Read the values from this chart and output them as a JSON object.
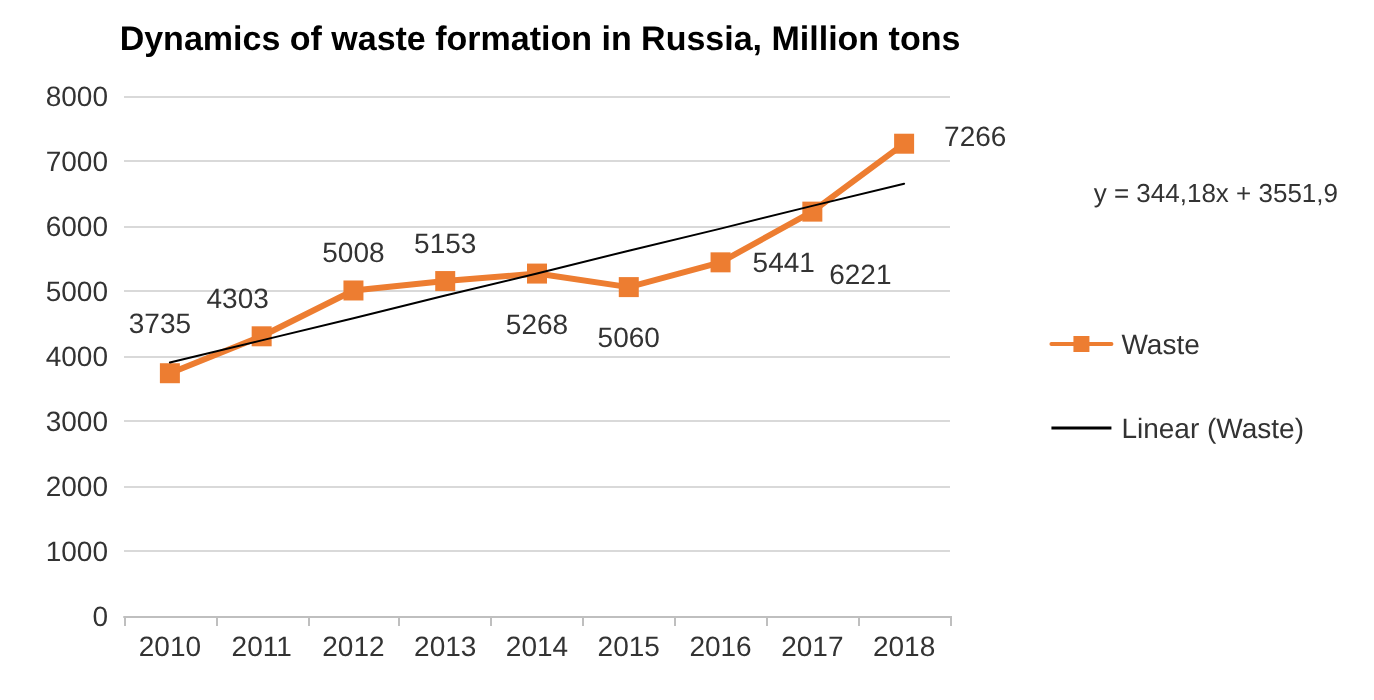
{
  "chart_data": {
    "type": "line",
    "title": "Dynamics of waste formation in Russia, Million tons",
    "categories": [
      "2010",
      "2011",
      "2012",
      "2013",
      "2014",
      "2015",
      "2016",
      "2017",
      "2018"
    ],
    "series": [
      {
        "name": "Waste",
        "color": "#ed7d31",
        "values": [
          3735,
          4303,
          5008,
          5153,
          5268,
          5060,
          5441,
          6221,
          7266
        ],
        "marker": "square",
        "data_labels": true
      },
      {
        "name": "Linear (Waste)",
        "color": "#000000",
        "values": [
          3900,
          4240,
          4580,
          4930,
          5270,
          5620,
          5960,
          6310,
          6650
        ],
        "marker": "none"
      }
    ],
    "annotations": [
      "y = 344,18x + 3551,9"
    ],
    "ylim": [
      0,
      8000
    ],
    "yticks": [
      0,
      1000,
      2000,
      3000,
      4000,
      5000,
      6000,
      7000,
      8000
    ],
    "grid": "y",
    "legend": "right"
  }
}
